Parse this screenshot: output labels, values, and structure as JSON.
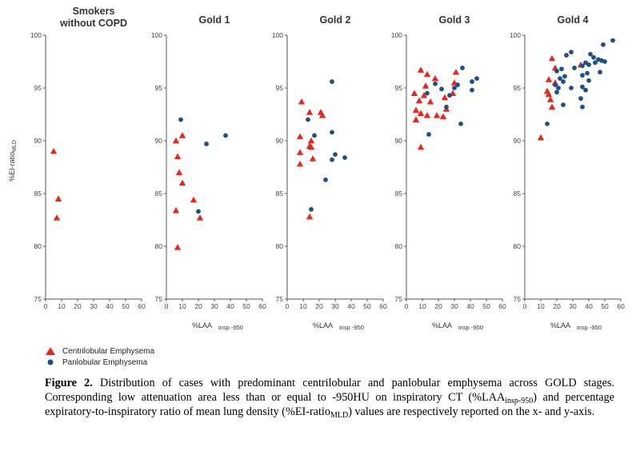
{
  "chart_data": [
    {
      "type": "scatter",
      "title": "Smokers\nwithout COPD",
      "xlabel": "",
      "ylabel": "%EI-ratio",
      "ylabel_sub": "MLD",
      "xlim": [
        0,
        60
      ],
      "ylim": [
        75,
        100
      ],
      "xticks": [
        "0",
        "10",
        "20",
        "30",
        "40",
        "50",
        "60"
      ],
      "yticks": [
        "75",
        "80",
        "85",
        "90",
        "95",
        "100"
      ],
      "grid": false,
      "series": [
        {
          "name": "Centrilobular Emphysema",
          "marker": "triangle",
          "color": "#e8261c",
          "points": [
            [
              5,
              89
            ],
            [
              8,
              84.5
            ],
            [
              7,
              82.7
            ]
          ]
        },
        {
          "name": "Panlobular Emphysema",
          "marker": "circle",
          "color": "#1d4f8a",
          "points": []
        }
      ]
    },
    {
      "type": "scatter",
      "title": "Gold 1",
      "xlabel": "%LAA",
      "xlabel_sub": "insp -950",
      "xlim": [
        0,
        60
      ],
      "ylim": [
        75,
        100
      ],
      "xticks": [
        "0",
        "10",
        "20",
        "30",
        "40",
        "50",
        "60"
      ],
      "yticks": [
        "75",
        "80",
        "85",
        "90",
        "95",
        "100"
      ],
      "grid": false,
      "series": [
        {
          "name": "Centrilobular Emphysema",
          "marker": "triangle",
          "color": "#e8261c",
          "points": [
            [
              6,
              90
            ],
            [
              10,
              90.5
            ],
            [
              7,
              88.5
            ],
            [
              8,
              87
            ],
            [
              10,
              86
            ],
            [
              17,
              84.4
            ],
            [
              6,
              83.4
            ],
            [
              21,
              82.7
            ],
            [
              7,
              79.9
            ]
          ]
        },
        {
          "name": "Panlobular Emphysema",
          "marker": "circle",
          "color": "#1d4f8a",
          "points": [
            [
              9,
              92
            ],
            [
              25,
              89.7
            ],
            [
              37,
              90.5
            ],
            [
              20,
              83.3
            ]
          ]
        }
      ]
    },
    {
      "type": "scatter",
      "title": "Gold 2",
      "xlabel": "%LAA",
      "xlabel_sub": "insp -950",
      "xlim": [
        0,
        60
      ],
      "ylim": [
        75,
        100
      ],
      "xticks": [
        "0",
        "10",
        "20",
        "30",
        "40",
        "50",
        "60"
      ],
      "yticks": [
        "75",
        "80",
        "85",
        "90",
        "95",
        "100"
      ],
      "grid": false,
      "series": [
        {
          "name": "Centrilobular Emphysema",
          "marker": "triangle",
          "color": "#e8261c",
          "points": [
            [
              9,
              93.7
            ],
            [
              14,
              92.7
            ],
            [
              21,
              92.7
            ],
            [
              22,
              92.4
            ],
            [
              8,
              90.4
            ],
            [
              15,
              90
            ],
            [
              14,
              89.5
            ],
            [
              15,
              89.4
            ],
            [
              8,
              88.9
            ],
            [
              16,
              88.3
            ],
            [
              8,
              87.8
            ],
            [
              14,
              82.8
            ]
          ]
        },
        {
          "name": "Panlobular Emphysema",
          "marker": "circle",
          "color": "#1d4f8a",
          "points": [
            [
              28,
              95.6
            ],
            [
              13,
              92
            ],
            [
              17,
              90.5
            ],
            [
              28,
              90.8
            ],
            [
              30,
              88.7
            ],
            [
              36,
              88.4
            ],
            [
              28,
              88.2
            ],
            [
              24,
              86.3
            ],
            [
              15,
              83.5
            ]
          ]
        }
      ]
    },
    {
      "type": "scatter",
      "title": "Gold 3",
      "xlabel": "%LAA",
      "xlabel_sub": "insp -950",
      "xlim": [
        0,
        60
      ],
      "ylim": [
        75,
        100
      ],
      "xticks": [
        "0",
        "10",
        "20",
        "30",
        "40",
        "50",
        "60"
      ],
      "yticks": [
        "75",
        "80",
        "85",
        "90",
        "95",
        "100"
      ],
      "grid": false,
      "series": [
        {
          "name": "Centrilobular Emphysema",
          "marker": "triangle",
          "color": "#e8261c",
          "points": [
            [
              9,
              96.7
            ],
            [
              13,
              96.3
            ],
            [
              18,
              95.9
            ],
            [
              31,
              96.5
            ],
            [
              12,
              95.2
            ],
            [
              30,
              95.5
            ],
            [
              5,
              94.5
            ],
            [
              11,
              94.3
            ],
            [
              24,
              94.1
            ],
            [
              8,
              93.8
            ],
            [
              15,
              93.7
            ],
            [
              29,
              94.5
            ],
            [
              6,
              92.9
            ],
            [
              9,
              92.6
            ],
            [
              13,
              92.4
            ],
            [
              19,
              92.4
            ],
            [
              23,
              92.3
            ],
            [
              6,
              92
            ],
            [
              25,
              93
            ],
            [
              9,
              89.4
            ]
          ]
        },
        {
          "name": "Panlobular Emphysema",
          "marker": "circle",
          "color": "#1d4f8a",
          "points": [
            [
              35,
              96.9
            ],
            [
              44,
              95.9
            ],
            [
              41,
              95.6
            ],
            [
              18,
              95.4
            ],
            [
              22,
              94.9
            ],
            [
              30,
              95
            ],
            [
              32,
              95.3
            ],
            [
              13,
              94.5
            ],
            [
              27,
              94.3
            ],
            [
              41,
              94.8
            ],
            [
              25,
              93.2
            ],
            [
              34,
              91.6
            ],
            [
              14,
              90.6
            ]
          ]
        }
      ]
    },
    {
      "type": "scatter",
      "title": "Gold 4",
      "xlabel": "%LAA",
      "xlabel_sub": "insp -950",
      "xlim": [
        0,
        60
      ],
      "ylim": [
        75,
        100
      ],
      "xticks": [
        "0",
        "10",
        "20",
        "30",
        "40",
        "50",
        "60"
      ],
      "yticks": [
        "75",
        "80",
        "85",
        "90",
        "95",
        "100"
      ],
      "grid": false,
      "series": [
        {
          "name": "Centrilobular Emphysema",
          "marker": "triangle",
          "color": "#e8261c",
          "points": [
            [
              17,
              97.8
            ],
            [
              19,
              96.9
            ],
            [
              15,
              95.8
            ],
            [
              19,
              95.5
            ],
            [
              14,
              94.7
            ],
            [
              15,
              94.4
            ],
            [
              16,
              93.9
            ],
            [
              17,
              93.2
            ],
            [
              35,
              97.2
            ],
            [
              10,
              90.3
            ]
          ]
        },
        {
          "name": "Panlobular Emphysema",
          "marker": "circle",
          "color": "#1d4f8a",
          "points": [
            [
              55,
              99.5
            ],
            [
              49,
              99.1
            ],
            [
              29,
              98.4
            ],
            [
              26,
              98.1
            ],
            [
              41,
              98.2
            ],
            [
              43,
              97.9
            ],
            [
              46,
              97.7
            ],
            [
              44,
              97.4
            ],
            [
              48,
              97.6
            ],
            [
              50,
              97.5
            ],
            [
              36,
              97.1
            ],
            [
              38,
              97.4
            ],
            [
              40,
              97.2
            ],
            [
              31,
              96.9
            ],
            [
              23,
              96.8
            ],
            [
              20,
              96.6
            ],
            [
              39,
              96.4
            ],
            [
              47,
              96.5
            ],
            [
              36,
              96.2
            ],
            [
              22,
              95.9
            ],
            [
              25,
              96.1
            ],
            [
              24,
              95.6
            ],
            [
              19,
              95.3
            ],
            [
              40,
              95.7
            ],
            [
              36,
              95.1
            ],
            [
              21,
              95
            ],
            [
              29,
              95
            ],
            [
              20,
              94.6
            ],
            [
              38,
              94.8
            ],
            [
              35,
              94
            ],
            [
              24,
              93.4
            ],
            [
              36,
              93.2
            ],
            [
              14,
              91.6
            ]
          ]
        }
      ]
    }
  ],
  "legend": {
    "items": [
      {
        "label": "Centrilobular Emphysema",
        "marker": "triangle",
        "color": "#e8261c"
      },
      {
        "label": "Panlobular Emphysema",
        "marker": "circle",
        "color": "#1d4f8a"
      }
    ]
  },
  "caption": {
    "label": "Figure 2.",
    "text_1": " Distribution of cases with predominant centrilobular and panlobular emphysema across GOLD stages. Corresponding low attenuation area less than or equal to -950HU on inspiratory CT (%LAA",
    "sub_1": "insp-950",
    "text_2": ") and percentage expiratory-to-inspiratory ratio of mean lung density (%EI-ratio",
    "sub_2": "MLD",
    "text_3": ") values are respectively reported on the x- and y-axis."
  }
}
